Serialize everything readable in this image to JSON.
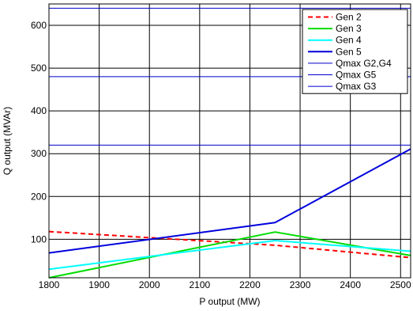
{
  "chart_data": {
    "type": "line",
    "title": "",
    "xlabel": "P output (MW)",
    "ylabel": "Q output (MVAr)",
    "xlim": [
      1800,
      2520
    ],
    "ylim": [
      10,
      650
    ],
    "xticks": [
      1800,
      1900,
      2000,
      2100,
      2200,
      2300,
      2400,
      2500
    ],
    "yticks": [
      100,
      200,
      300,
      400,
      500,
      600
    ],
    "grid": true,
    "legend_position": "top-right",
    "series": [
      {
        "name": "Gen 2",
        "color": "#ff0000",
        "dash": "dashed",
        "width": 2,
        "x": [
          1800,
          2250,
          2520
        ],
        "y": [
          118,
          86,
          57
        ]
      },
      {
        "name": "Gen 3",
        "color": "#00dd00",
        "dash": "solid",
        "width": 2,
        "x": [
          1800,
          2250,
          2520
        ],
        "y": [
          10,
          117,
          62
        ]
      },
      {
        "name": "Gen 4",
        "color": "#00ffff",
        "dash": "solid",
        "width": 2,
        "x": [
          1800,
          2250,
          2520
        ],
        "y": [
          30,
          97,
          72
        ]
      },
      {
        "name": "Gen 5",
        "color": "#0000dd",
        "dash": "solid",
        "width": 2,
        "x": [
          1800,
          2250,
          2520
        ],
        "y": [
          68,
          139,
          311
        ]
      },
      {
        "name": "Qmax G2,G4",
        "color": "#0000cc",
        "dash": "solid",
        "width": 1,
        "x": [
          1800,
          2520
        ],
        "y": [
          640,
          640
        ]
      },
      {
        "name": "Qmax G5",
        "color": "#0000cc",
        "dash": "solid",
        "width": 1,
        "x": [
          1800,
          2520
        ],
        "y": [
          480,
          480
        ]
      },
      {
        "name": "Qmax G3",
        "color": "#0000cc",
        "dash": "solid",
        "width": 1,
        "x": [
          1800,
          2520
        ],
        "y": [
          320,
          320
        ]
      }
    ]
  }
}
